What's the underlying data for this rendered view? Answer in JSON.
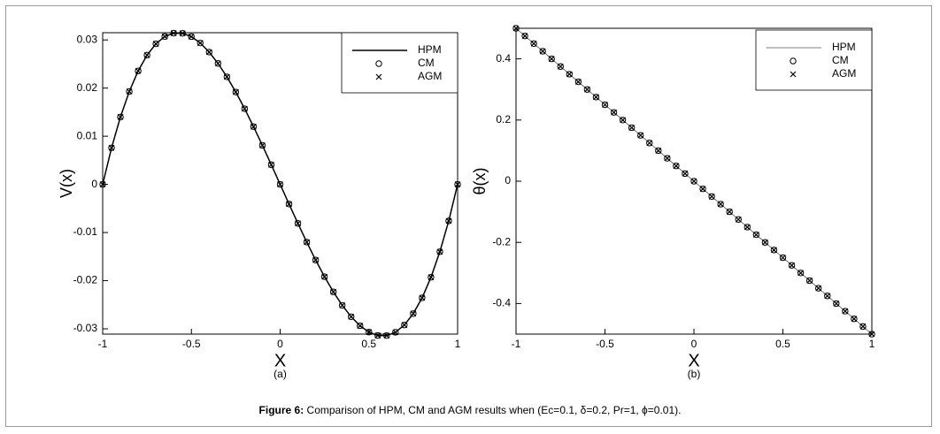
{
  "chart_data": [
    {
      "type": "line",
      "xlabel": "X",
      "ylabel": "V(x)",
      "sublabel": "(a)",
      "legend": "upper right",
      "xlim": [
        -1,
        1
      ],
      "xticks": [
        -1,
        -0.5,
        0,
        0.5,
        1
      ],
      "ylim": [
        -0.0311,
        0.0315
      ],
      "yticks": [
        -0.03,
        -0.02,
        -0.01,
        0,
        0.01,
        0.02,
        0.03
      ],
      "x": [
        -1,
        -0.95,
        -0.9,
        -0.85,
        -0.8,
        -0.75,
        -0.7,
        -0.65,
        -0.6,
        -0.55,
        -0.5,
        -0.45,
        -0.4,
        -0.35,
        -0.3,
        -0.25,
        -0.2,
        -0.15,
        -0.1,
        -0.05,
        0,
        0.05,
        0.1,
        0.15,
        0.2,
        0.25,
        0.3,
        0.35,
        0.4,
        0.45,
        0.5,
        0.55,
        0.6,
        0.65,
        0.7,
        0.75,
        0.8,
        0.85,
        0.9,
        0.95,
        1
      ],
      "series": [
        {
          "name": "HPM",
          "color": "#000000",
          "marker": "line",
          "values": [
            0,
            0.00758,
            0.01399,
            0.01929,
            0.02356,
            0.02684,
            0.0292,
            0.03071,
            0.03141,
            0.03138,
            0.03068,
            0.02936,
            0.02748,
            0.02512,
            0.02233,
            0.01917,
            0.01571,
            0.01199,
            0.0081,
            0.00408,
            0,
            -0.00408,
            -0.0081,
            -0.01199,
            -0.01571,
            -0.01917,
            -0.02233,
            -0.02512,
            -0.02748,
            -0.02936,
            -0.03068,
            -0.03138,
            -0.03141,
            -0.03071,
            -0.0292,
            -0.02684,
            -0.02356,
            -0.01929,
            -0.01399,
            -0.00758,
            0
          ]
        },
        {
          "name": "CM",
          "color": "#000000",
          "marker": "circle",
          "values": [
            0,
            0.00758,
            0.01399,
            0.01929,
            0.02356,
            0.02684,
            0.0292,
            0.03071,
            0.03141,
            0.03138,
            0.03068,
            0.02936,
            0.02748,
            0.02512,
            0.02233,
            0.01917,
            0.01571,
            0.01199,
            0.0081,
            0.00408,
            0,
            -0.00408,
            -0.0081,
            -0.01199,
            -0.01571,
            -0.01917,
            -0.02233,
            -0.02512,
            -0.02748,
            -0.02936,
            -0.03068,
            -0.03138,
            -0.03141,
            -0.03071,
            -0.0292,
            -0.02684,
            -0.02356,
            -0.01929,
            -0.01399,
            -0.00758,
            0
          ]
        },
        {
          "name": "AGM",
          "color": "#000000",
          "marker": "x",
          "values": [
            0,
            0.00758,
            0.01399,
            0.01929,
            0.02356,
            0.02684,
            0.0292,
            0.03071,
            0.03141,
            0.03138,
            0.03068,
            0.02936,
            0.02748,
            0.02512,
            0.02233,
            0.01917,
            0.01571,
            0.01199,
            0.0081,
            0.00408,
            0,
            -0.00408,
            -0.0081,
            -0.01199,
            -0.01571,
            -0.01917,
            -0.02233,
            -0.02512,
            -0.02748,
            -0.02936,
            -0.03068,
            -0.03138,
            -0.03141,
            -0.03071,
            -0.0292,
            -0.02684,
            -0.02356,
            -0.01929,
            -0.01399,
            -0.00758,
            0
          ]
        }
      ]
    },
    {
      "type": "line",
      "xlabel": "X",
      "ylabel": "θ(x)",
      "sublabel": "(b)",
      "legend": "upper right",
      "xlim": [
        -1,
        1
      ],
      "xticks": [
        -1,
        -0.5,
        0,
        0.5,
        1
      ],
      "ylim": [
        -0.5,
        0.5
      ],
      "yticks": [
        -0.4,
        -0.2,
        0,
        0.2,
        0.4
      ],
      "x": [
        -1,
        -0.95,
        -0.9,
        -0.85,
        -0.8,
        -0.75,
        -0.7,
        -0.65,
        -0.6,
        -0.55,
        -0.5,
        -0.45,
        -0.4,
        -0.35,
        -0.3,
        -0.25,
        -0.2,
        -0.15,
        -0.1,
        -0.05,
        0,
        0.05,
        0.1,
        0.15,
        0.2,
        0.25,
        0.3,
        0.35,
        0.4,
        0.45,
        0.5,
        0.55,
        0.6,
        0.65,
        0.7,
        0.75,
        0.8,
        0.85,
        0.9,
        0.95,
        1
      ],
      "series": [
        {
          "name": "HPM",
          "color": "#555555",
          "marker": "line",
          "values": [
            0.5,
            0.475,
            0.45,
            0.425,
            0.4,
            0.375,
            0.35,
            0.325,
            0.3,
            0.275,
            0.25,
            0.225,
            0.2,
            0.175,
            0.15,
            0.125,
            0.1,
            0.075,
            0.05,
            0.025,
            0,
            -0.025,
            -0.05,
            -0.075,
            -0.1,
            -0.125,
            -0.15,
            -0.175,
            -0.2,
            -0.225,
            -0.25,
            -0.275,
            -0.3,
            -0.325,
            -0.35,
            -0.375,
            -0.4,
            -0.425,
            -0.45,
            -0.475,
            -0.5
          ]
        },
        {
          "name": "CM",
          "color": "#000000",
          "marker": "circle",
          "values": [
            0.5,
            0.475,
            0.45,
            0.425,
            0.4,
            0.375,
            0.35,
            0.325,
            0.3,
            0.275,
            0.25,
            0.225,
            0.2,
            0.175,
            0.15,
            0.125,
            0.1,
            0.075,
            0.05,
            0.025,
            0,
            -0.025,
            -0.05,
            -0.075,
            -0.1,
            -0.125,
            -0.15,
            -0.175,
            -0.2,
            -0.225,
            -0.25,
            -0.275,
            -0.3,
            -0.325,
            -0.35,
            -0.375,
            -0.4,
            -0.425,
            -0.45,
            -0.475,
            -0.5
          ]
        },
        {
          "name": "AGM",
          "color": "#000000",
          "marker": "x",
          "values": [
            0.5,
            0.475,
            0.45,
            0.425,
            0.4,
            0.375,
            0.35,
            0.325,
            0.3,
            0.275,
            0.25,
            0.225,
            0.2,
            0.175,
            0.15,
            0.125,
            0.1,
            0.075,
            0.05,
            0.025,
            0,
            -0.025,
            -0.05,
            -0.075,
            -0.1,
            -0.125,
            -0.15,
            -0.175,
            -0.2,
            -0.225,
            -0.25,
            -0.275,
            -0.3,
            -0.325,
            -0.35,
            -0.375,
            -0.4,
            -0.425,
            -0.45,
            -0.475,
            -0.5
          ]
        }
      ]
    }
  ],
  "caption": {
    "label": "Figure 6:",
    "text": "Comparison of HPM, CM and AGM results when (Ec=0.1, δ=0.2, Pr=1, ϕ=0.01)."
  }
}
